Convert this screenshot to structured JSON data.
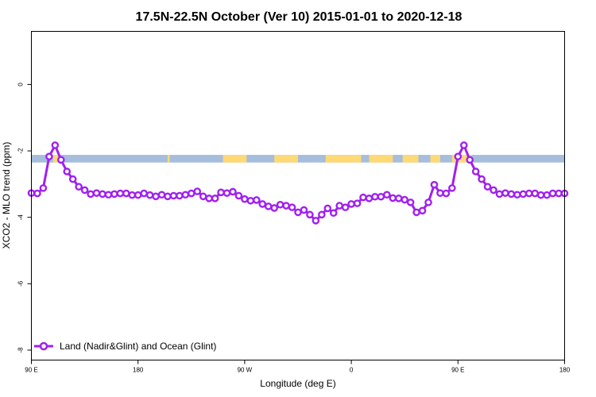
{
  "chart_data": {
    "type": "line",
    "title": "17.5N-22.5N October (Ver 10)   2015-01-01 to 2020-12-18",
    "xlabel": "Longitude (deg E)",
    "ylabel": "XCO2 - MLO trend (ppm)",
    "xlim": [
      -90,
      180
    ],
    "ylim": [
      -8.3,
      1.6
    ],
    "x_ticks": [
      {
        "value": -90,
        "label": "90 E"
      },
      {
        "value": -36,
        "label": "180"
      },
      {
        "value": 18,
        "label": "90 W"
      },
      {
        "value": 72,
        "label": "0"
      },
      {
        "value": 126,
        "label": "90 E"
      },
      {
        "value": 180,
        "label": "180"
      }
    ],
    "y_ticks": [
      {
        "value": 0,
        "label": "0"
      },
      {
        "value": -2,
        "label": "-2"
      },
      {
        "value": -4,
        "label": "-4"
      },
      {
        "value": -6,
        "label": "-6"
      },
      {
        "value": -8,
        "label": "-8"
      }
    ],
    "land_ocean_strip": {
      "y_range": [
        -2.35,
        -2.12
      ],
      "ocean_color": "#a6bddb",
      "land_color": "#fed976",
      "land_segments": [
        [
          -79,
          -76
        ],
        [
          -21,
          -20
        ],
        [
          7,
          19
        ],
        [
          33,
          45
        ],
        [
          59,
          77
        ],
        [
          81,
          93
        ],
        [
          98,
          106
        ],
        [
          112,
          117
        ],
        [
          123,
          133
        ]
      ]
    },
    "series": [
      {
        "name": "Land (Nadir&Glint) and Ocean (Glint)",
        "color": "#a020f0",
        "x": [
          -90,
          -87,
          -84,
          -81,
          -78,
          -75,
          -72,
          -69,
          -66,
          -63,
          -60,
          -57,
          -54,
          -51,
          -48,
          -45,
          -42,
          -39,
          -36,
          -33,
          -30,
          -27,
          -24,
          -21,
          -18,
          -15,
          -12,
          -9,
          -6,
          -3,
          0,
          3,
          6,
          9,
          12,
          15,
          18,
          21,
          24,
          27,
          30,
          33,
          36,
          39,
          42,
          45,
          48,
          51,
          54,
          57,
          60,
          63,
          66,
          69,
          72,
          75,
          78,
          81,
          84,
          87,
          90,
          93,
          96,
          99,
          102,
          105,
          108,
          111,
          114,
          117,
          120,
          123,
          126,
          129,
          132,
          135,
          138,
          141,
          144,
          147,
          150,
          153,
          156,
          159,
          162,
          165,
          168,
          171,
          174,
          177,
          180
        ],
        "values": [
          -3.27,
          -3.28,
          -3.12,
          -2.17,
          -1.83,
          -2.27,
          -2.62,
          -2.85,
          -3.08,
          -3.18,
          -3.3,
          -3.27,
          -3.3,
          -3.32,
          -3.3,
          -3.28,
          -3.28,
          -3.33,
          -3.33,
          -3.28,
          -3.33,
          -3.37,
          -3.32,
          -3.37,
          -3.35,
          -3.35,
          -3.32,
          -3.28,
          -3.22,
          -3.37,
          -3.43,
          -3.43,
          -3.25,
          -3.27,
          -3.23,
          -3.35,
          -3.45,
          -3.5,
          -3.48,
          -3.6,
          -3.67,
          -3.72,
          -3.62,
          -3.65,
          -3.7,
          -3.85,
          -3.78,
          -3.92,
          -4.1,
          -3.92,
          -3.73,
          -3.87,
          -3.65,
          -3.7,
          -3.6,
          -3.58,
          -3.4,
          -3.43,
          -3.38,
          -3.38,
          -3.32,
          -3.42,
          -3.43,
          -3.47,
          -3.55,
          -3.85,
          -3.8,
          -3.55,
          -3.02,
          -3.27,
          -3.28,
          -3.12,
          -2.17,
          -1.83,
          -2.27,
          -2.62,
          -2.85,
          -3.08,
          -3.18,
          -3.3,
          -3.27,
          -3.3,
          -3.32,
          -3.3,
          -3.28,
          -3.28,
          -3.33,
          -3.33,
          -3.28,
          -3.28,
          -3.28
        ]
      }
    ],
    "legend_position": "bottom-left",
    "grid": false
  }
}
